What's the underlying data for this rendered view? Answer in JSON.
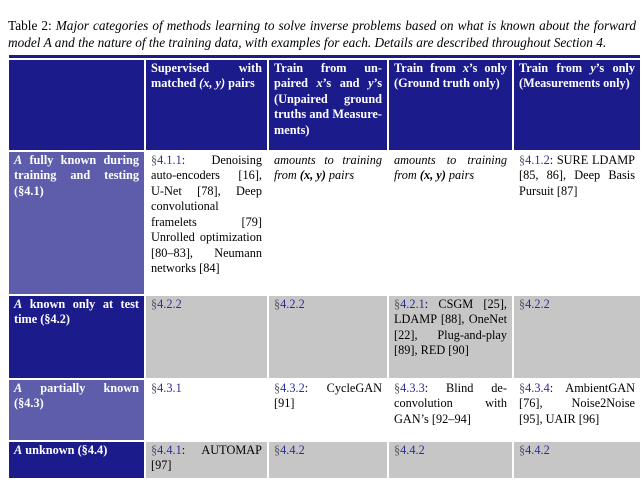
{
  "colors": {
    "header_navy": "#1b1b8c",
    "row_slate_blue": "#5d5dab",
    "cell_gray": "#c6c6c6",
    "cell_white": "#ffffff",
    "section_link": "#2d2d9a",
    "section_sign": "#55555c",
    "header_text": "#ffffff",
    "body_text": "#000000"
  },
  "caption": {
    "parts": [
      {
        "t": "Table 2: ",
        "s": "p"
      },
      {
        "t": "Major categories of methods learning to solve inverse problems based on what is known about the forward model ",
        "s": "i"
      },
      {
        "t": "A",
        "s": "a"
      },
      {
        "t": " and the nature of the training data, with examples for each. Details are described throughout Section 4.",
        "s": "i"
      }
    ]
  },
  "table": {
    "corner": "",
    "columns": [
      {
        "parts": [
          {
            "t": "Supervised with matched ",
            "s": "p"
          },
          {
            "t": "(x, y)",
            "s": "m"
          },
          {
            "t": " pairs",
            "s": "p"
          }
        ]
      },
      {
        "parts": [
          {
            "t": "Train from un­paired ",
            "s": "p"
          },
          {
            "t": "x",
            "s": "m"
          },
          {
            "t": "’s and ",
            "s": "p"
          },
          {
            "t": "y",
            "s": "m"
          },
          {
            "t": "’s (Unpaired ground truths and Measure­ments)",
            "s": "p"
          }
        ]
      },
      {
        "parts": [
          {
            "t": "Train from ",
            "s": "p"
          },
          {
            "t": "x",
            "s": "m"
          },
          {
            "t": "’s only (Ground truth only)",
            "s": "p"
          }
        ]
      },
      {
        "parts": [
          {
            "t": "Train from ",
            "s": "p"
          },
          {
            "t": "y",
            "s": "m"
          },
          {
            "t": "’s only (Measure­ments only)",
            "s": "p"
          }
        ]
      }
    ],
    "rows": [
      {
        "header": {
          "parts": [
            {
              "t": "A",
              "s": "a"
            },
            {
              "t": " fully known during training and testing (§4.1)",
              "s": "p"
            }
          ]
        },
        "cells": [
          {
            "parts": [
              {
                "t": "§",
                "s": "s"
              },
              {
                "t": "4.1.1",
                "s": "r"
              },
              {
                "t": ": Denoising auto-encoders [16], U-Net [78], Deep convolutional framelets [79] Unrolled opti­mization [80–83], Neumann net­works [84]",
                "s": "p"
              }
            ]
          },
          {
            "parts": [
              {
                "t": "amounts to training from ",
                "s": "i"
              },
              {
                "t": "(x, y)",
                "s": "m"
              },
              {
                "t": " pairs",
                "s": "i"
              }
            ]
          },
          {
            "parts": [
              {
                "t": "amounts to training from ",
                "s": "i"
              },
              {
                "t": "(x, y)",
                "s": "m"
              },
              {
                "t": " pairs",
                "s": "i"
              }
            ]
          },
          {
            "parts": [
              {
                "t": "§",
                "s": "s"
              },
              {
                "t": "4.1.2",
                "s": "r"
              },
              {
                "t": ": SURE LDAMP [85, 86], Deep Basis Pur­suit [87]",
                "s": "p"
              }
            ]
          }
        ]
      },
      {
        "header": {
          "parts": [
            {
              "t": "A",
              "s": "a"
            },
            {
              "t": " known only at test time (§4.2)",
              "s": "p"
            }
          ]
        },
        "cells": [
          {
            "parts": [
              {
                "t": "§",
                "s": "s"
              },
              {
                "t": "4.2.2",
                "s": "r"
              }
            ]
          },
          {
            "parts": [
              {
                "t": "§",
                "s": "s"
              },
              {
                "t": "4.2.2",
                "s": "r"
              }
            ]
          },
          {
            "parts": [
              {
                "t": "§",
                "s": "s"
              },
              {
                "t": "4.2.1",
                "s": "r"
              },
              {
                "t": ": CSGM [25], LDAMP [88], OneNet [22], Plug-and-play [89], RED [90]",
                "s": "p"
              }
            ]
          },
          {
            "parts": [
              {
                "t": "§",
                "s": "s"
              },
              {
                "t": "4.2.2",
                "s": "r"
              }
            ]
          }
        ]
      },
      {
        "header": {
          "parts": [
            {
              "t": "A",
              "s": "a"
            },
            {
              "t": " partially known (§4.3)",
              "s": "p"
            }
          ]
        },
        "cells": [
          {
            "parts": [
              {
                "t": "§",
                "s": "s"
              },
              {
                "t": "4.3.1",
                "s": "r"
              }
            ]
          },
          {
            "parts": [
              {
                "t": "§",
                "s": "s"
              },
              {
                "t": "4.3.2",
                "s": "r"
              },
              {
                "t": ": CycleGAN [91]",
                "s": "p"
              }
            ]
          },
          {
            "parts": [
              {
                "t": "§",
                "s": "s"
              },
              {
                "t": "4.3.3",
                "s": "r"
              },
              {
                "t": ": Blind de­convolution with GAN’s [92–94]",
                "s": "p"
              }
            ]
          },
          {
            "parts": [
              {
                "t": "§",
                "s": "s"
              },
              {
                "t": "4.3.4",
                "s": "r"
              },
              {
                "t": ": Ambi­entGAN [76], Noise2Noise [95], UAIR [96]",
                "s": "p"
              }
            ]
          }
        ]
      },
      {
        "header": {
          "parts": [
            {
              "t": "A",
              "s": "a"
            },
            {
              "t": " unknown (§4.4)",
              "s": "p"
            }
          ]
        },
        "cells": [
          {
            "parts": [
              {
                "t": "§",
                "s": "s"
              },
              {
                "t": "4.4.1",
                "s": "r"
              },
              {
                "t": ": AUTOMAP [97]",
                "s": "p"
              }
            ]
          },
          {
            "parts": [
              {
                "t": "§",
                "s": "s"
              },
              {
                "t": "4.4.2",
                "s": "r"
              }
            ]
          },
          {
            "parts": [
              {
                "t": "§",
                "s": "s"
              },
              {
                "t": "4.4.2",
                "s": "r"
              }
            ]
          },
          {
            "parts": [
              {
                "t": "§",
                "s": "s"
              },
              {
                "t": "4.4.2",
                "s": "r"
              }
            ]
          }
        ]
      }
    ]
  }
}
